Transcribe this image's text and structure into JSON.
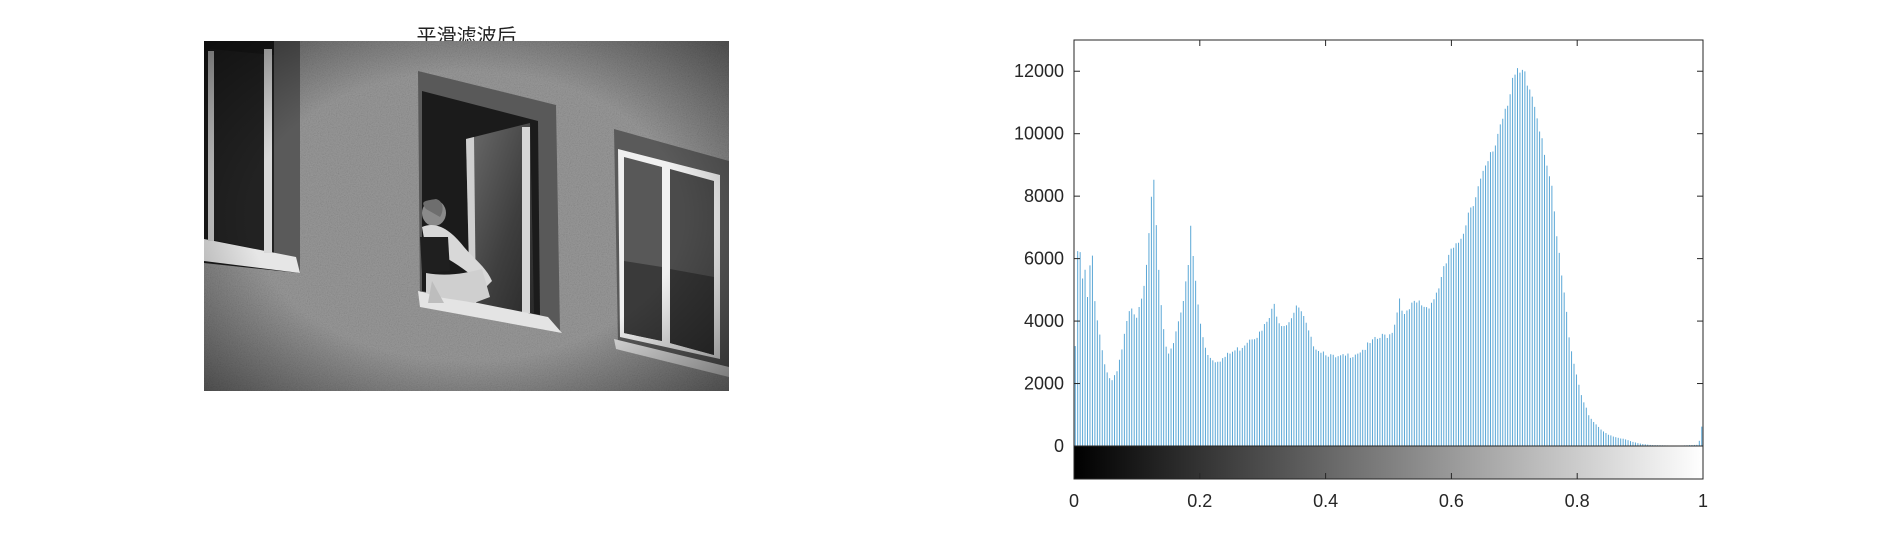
{
  "image_panel": {
    "title": "平滑滤波后"
  },
  "chart_data": {
    "type": "bar",
    "title": "",
    "xlabel": "",
    "ylabel": "",
    "xlim": [
      0,
      1
    ],
    "ylim": [
      -1000,
      13000
    ],
    "x_ticks": [
      0,
      0.2,
      0.4,
      0.6,
      0.8,
      1
    ],
    "x_tick_labels": [
      "0",
      "0.2",
      "0.4",
      "0.6",
      "0.8",
      "1"
    ],
    "y_ticks": [
      0,
      2000,
      4000,
      6000,
      8000,
      10000,
      12000
    ],
    "y_tick_labels": [
      "0",
      "2000",
      "4000",
      "6000",
      "8000",
      "10000",
      "12000"
    ],
    "bar_color": "#5aa7d6",
    "colorbar": "grayscale 0 to 1 below axis",
    "grid": false,
    "bins": 256,
    "envelope": [
      [
        0.0,
        3200
      ],
      [
        0.004,
        6100
      ],
      [
        0.008,
        6200
      ],
      [
        0.012,
        5200
      ],
      [
        0.016,
        5600
      ],
      [
        0.02,
        4600
      ],
      [
        0.024,
        5800
      ],
      [
        0.028,
        6100
      ],
      [
        0.032,
        4500
      ],
      [
        0.036,
        4000
      ],
      [
        0.042,
        3200
      ],
      [
        0.05,
        2400
      ],
      [
        0.058,
        2050
      ],
      [
        0.066,
        2300
      ],
      [
        0.074,
        3000
      ],
      [
        0.082,
        3900
      ],
      [
        0.09,
        4500
      ],
      [
        0.098,
        4200
      ],
      [
        0.104,
        4700
      ],
      [
        0.11,
        5300
      ],
      [
        0.116,
        6300
      ],
      [
        0.12,
        7000
      ],
      [
        0.124,
        9000
      ],
      [
        0.128,
        7500
      ],
      [
        0.132,
        6000
      ],
      [
        0.138,
        4200
      ],
      [
        0.144,
        3100
      ],
      [
        0.15,
        3000
      ],
      [
        0.158,
        3400
      ],
      [
        0.166,
        4200
      ],
      [
        0.174,
        4800
      ],
      [
        0.18,
        5600
      ],
      [
        0.184,
        7000
      ],
      [
        0.188,
        6100
      ],
      [
        0.192,
        5300
      ],
      [
        0.198,
        4100
      ],
      [
        0.206,
        3300
      ],
      [
        0.214,
        2850
      ],
      [
        0.224,
        2750
      ],
      [
        0.236,
        2800
      ],
      [
        0.25,
        3000
      ],
      [
        0.264,
        3150
      ],
      [
        0.28,
        3500
      ],
      [
        0.296,
        3600
      ],
      [
        0.31,
        4100
      ],
      [
        0.318,
        4500
      ],
      [
        0.326,
        4000
      ],
      [
        0.336,
        3900
      ],
      [
        0.346,
        4200
      ],
      [
        0.356,
        4450
      ],
      [
        0.366,
        4000
      ],
      [
        0.376,
        3400
      ],
      [
        0.388,
        3100
      ],
      [
        0.4,
        3000
      ],
      [
        0.414,
        2800
      ],
      [
        0.428,
        2850
      ],
      [
        0.444,
        2950
      ],
      [
        0.46,
        3100
      ],
      [
        0.476,
        3350
      ],
      [
        0.49,
        3500
      ],
      [
        0.504,
        3600
      ],
      [
        0.512,
        4100
      ],
      [
        0.518,
        4800
      ],
      [
        0.526,
        4100
      ],
      [
        0.536,
        4450
      ],
      [
        0.548,
        4600
      ],
      [
        0.56,
        4450
      ],
      [
        0.572,
        4700
      ],
      [
        0.584,
        5300
      ],
      [
        0.596,
        6100
      ],
      [
        0.608,
        6300
      ],
      [
        0.62,
        7000
      ],
      [
        0.632,
        7800
      ],
      [
        0.644,
        8300
      ],
      [
        0.656,
        8800
      ],
      [
        0.668,
        9500
      ],
      [
        0.68,
        10500
      ],
      [
        0.69,
        11200
      ],
      [
        0.698,
        11800
      ],
      [
        0.706,
        11700
      ],
      [
        0.712,
        11800
      ],
      [
        0.72,
        11600
      ],
      [
        0.73,
        11200
      ],
      [
        0.74,
        10500
      ],
      [
        0.75,
        9500
      ],
      [
        0.76,
        8200
      ],
      [
        0.77,
        6400
      ],
      [
        0.78,
        4900
      ],
      [
        0.79,
        3300
      ],
      [
        0.8,
        2300
      ],
      [
        0.81,
        1500
      ],
      [
        0.82,
        950
      ],
      [
        0.83,
        700
      ],
      [
        0.84,
        500
      ],
      [
        0.85,
        380
      ],
      [
        0.86,
        300
      ],
      [
        0.87,
        250
      ],
      [
        0.88,
        200
      ],
      [
        0.89,
        130
      ],
      [
        0.9,
        80
      ],
      [
        0.92,
        30
      ],
      [
        0.96,
        10
      ],
      [
        0.995,
        40
      ],
      [
        1.0,
        600
      ]
    ]
  }
}
